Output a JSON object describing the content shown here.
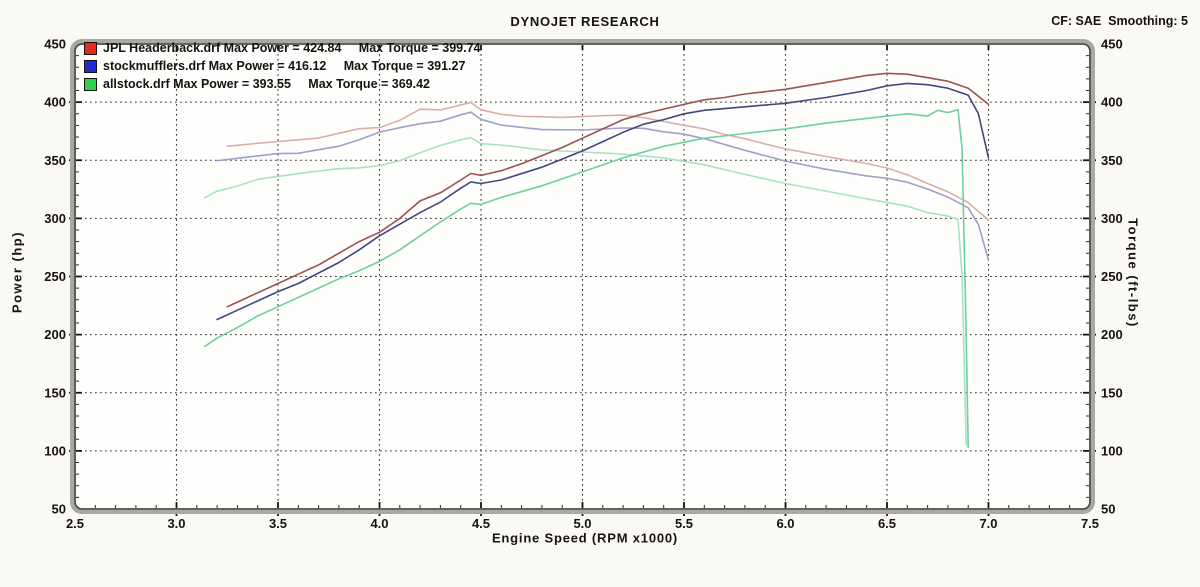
{
  "header": {
    "title": "DYNOJET RESEARCH",
    "cf_label": "CF: SAE  Smoothing: 5"
  },
  "legend": [
    {
      "file": "JPL Headerback.drf",
      "max_power": 424.84,
      "max_torque": 399.74,
      "swatch_color": "#e22a1e",
      "label": "JPL Headerback.drf Max Power = 424.84     Max Torque = 399.74"
    },
    {
      "file": "stockmufflers.drf",
      "max_power": 416.12,
      "max_torque": 391.27,
      "swatch_color": "#1f2ad2",
      "label": "stockmufflers.drf Max Power = 416.12     Max Torque = 391.27"
    },
    {
      "file": "allstock.drf",
      "max_power": 393.55,
      "max_torque": 369.42,
      "swatch_color": "#2ed24a",
      "label": "allstock.drf Max Power = 393.55     Max Torque = 369.42"
    }
  ],
  "chart_data": {
    "type": "line",
    "title": "DYNOJET RESEARCH",
    "xlabel": "Engine Speed (RPM x1000)",
    "ylabel_left": "Power (hp)",
    "ylabel_right": "Torque (ft-lbs)",
    "xlim": [
      2.5,
      7.5
    ],
    "ylim": [
      50,
      450
    ],
    "x_ticks": [
      "2.5",
      "3.0",
      "3.5",
      "4.0",
      "4.5",
      "5.0",
      "5.5",
      "6.0",
      "6.5",
      "7.0",
      "7.5"
    ],
    "y_ticks": [
      "50",
      "100",
      "150",
      "200",
      "250",
      "300",
      "350",
      "400",
      "450"
    ],
    "x_minor": 0.1,
    "y_minor": 10,
    "grid": "dashed-major",
    "grid_color": "#3a3a38",
    "frame_band_color": "#a9a9a0",
    "frame_line_color": "#4a4a44",
    "plot_bg": "#fefefd",
    "series": [
      {
        "name": "allstock torque",
        "unit": "ft-lbs",
        "axis": "torque",
        "color": "#a6e2c5",
        "width": 1.6,
        "points": [
          [
            3.14,
            317.8
          ],
          [
            3.2,
            323.4
          ],
          [
            3.3,
            327.8
          ],
          [
            3.4,
            333.6
          ],
          [
            3.5,
            336.1
          ],
          [
            3.6,
            338.5
          ],
          [
            3.7,
            340.7
          ],
          [
            3.8,
            342.7
          ],
          [
            3.9,
            343.4
          ],
          [
            4.0,
            345.3
          ],
          [
            4.1,
            349.7
          ],
          [
            4.2,
            356.4
          ],
          [
            4.3,
            362.8
          ],
          [
            4.4,
            367.6
          ],
          [
            4.45,
            369.4
          ],
          [
            4.5,
            364.2
          ],
          [
            4.6,
            363.1
          ],
          [
            4.8,
            358.9
          ],
          [
            5.0,
            357.1
          ],
          [
            5.2,
            355.3
          ],
          [
            5.4,
            352.0
          ],
          [
            5.6,
            346.1
          ],
          [
            5.8,
            337.8
          ],
          [
            6.0,
            330.0
          ],
          [
            6.2,
            323.5
          ],
          [
            6.4,
            316.8
          ],
          [
            6.6,
            310.5
          ],
          [
            6.7,
            305.0
          ],
          [
            6.8,
            302.0
          ],
          [
            6.85,
            299.0
          ],
          [
            6.87,
            250.0
          ],
          [
            6.89,
            105.0
          ]
        ]
      },
      {
        "name": "stockmufflers torque",
        "unit": "ft-lbs",
        "axis": "torque",
        "color": "#9f9fce",
        "width": 1.6,
        "points": [
          [
            3.2,
            349.6
          ],
          [
            3.3,
            351.7
          ],
          [
            3.4,
            353.7
          ],
          [
            3.5,
            355.7
          ],
          [
            3.6,
            356.0
          ],
          [
            3.7,
            359.1
          ],
          [
            3.8,
            362.1
          ],
          [
            3.9,
            367.7
          ],
          [
            4.0,
            374.2
          ],
          [
            4.1,
            378.0
          ],
          [
            4.2,
            381.4
          ],
          [
            4.3,
            383.6
          ],
          [
            4.4,
            389.1
          ],
          [
            4.45,
            391.3
          ],
          [
            4.5,
            385.2
          ],
          [
            4.6,
            380.2
          ],
          [
            4.8,
            376.4
          ],
          [
            5.0,
            376.0
          ],
          [
            5.1,
            376.9
          ],
          [
            5.2,
            377.7
          ],
          [
            5.3,
            377.5
          ],
          [
            5.4,
            374.5
          ],
          [
            5.5,
            372.4
          ],
          [
            5.6,
            368.6
          ],
          [
            5.8,
            358.6
          ],
          [
            6.0,
            349.3
          ],
          [
            6.2,
            342.2
          ],
          [
            6.4,
            336.5
          ],
          [
            6.5,
            334.5
          ],
          [
            6.6,
            331.1
          ],
          [
            6.7,
            325.3
          ],
          [
            6.8,
            318.3
          ],
          [
            6.9,
            309.1
          ],
          [
            6.95,
            294.8
          ],
          [
            7.0,
            264.1
          ]
        ]
      },
      {
        "name": "JPL Headerback torque",
        "unit": "ft-lbs",
        "axis": "torque",
        "color": "#d9aeaa",
        "width": 1.6,
        "points": [
          [
            3.25,
            362.1
          ],
          [
            3.3,
            362.9
          ],
          [
            3.4,
            364.6
          ],
          [
            3.5,
            366.1
          ],
          [
            3.6,
            367.6
          ],
          [
            3.7,
            369.1
          ],
          [
            3.8,
            373.2
          ],
          [
            3.9,
            377.1
          ],
          [
            4.0,
            378.1
          ],
          [
            4.1,
            384.4
          ],
          [
            4.2,
            393.9
          ],
          [
            4.3,
            393.3
          ],
          [
            4.4,
            397.5
          ],
          [
            4.45,
            399.7
          ],
          [
            4.5,
            393.4
          ],
          [
            4.6,
            389.4
          ],
          [
            4.7,
            387.8
          ],
          [
            4.8,
            387.4
          ],
          [
            4.9,
            386.9
          ],
          [
            5.0,
            387.6
          ],
          [
            5.1,
            388.3
          ],
          [
            5.2,
            388.8
          ],
          [
            5.3,
            386.6
          ],
          [
            5.4,
            383.3
          ],
          [
            5.5,
            380.1
          ],
          [
            5.6,
            377.0
          ],
          [
            5.7,
            372.2
          ],
          [
            5.8,
            368.5
          ],
          [
            5.9,
            364.0
          ],
          [
            6.0,
            359.8
          ],
          [
            6.1,
            356.5
          ],
          [
            6.2,
            353.2
          ],
          [
            6.3,
            350.1
          ],
          [
            6.4,
            347.2
          ],
          [
            6.5,
            343.3
          ],
          [
            6.6,
            337.6
          ],
          [
            6.7,
            330.0
          ],
          [
            6.8,
            322.9
          ],
          [
            6.9,
            313.6
          ],
          [
            6.95,
            306.0
          ],
          [
            7.0,
            298.6
          ]
        ]
      },
      {
        "name": "allstock power",
        "unit": "hp",
        "axis": "power",
        "color": "#6fcfa0",
        "width": 1.6,
        "points": [
          [
            3.14,
            190
          ],
          [
            3.2,
            197
          ],
          [
            3.3,
            206
          ],
          [
            3.4,
            216
          ],
          [
            3.5,
            224
          ],
          [
            3.6,
            232
          ],
          [
            3.7,
            240
          ],
          [
            3.8,
            248
          ],
          [
            3.9,
            255
          ],
          [
            4.0,
            263
          ],
          [
            4.1,
            273
          ],
          [
            4.2,
            285
          ],
          [
            4.3,
            297
          ],
          [
            4.4,
            308
          ],
          [
            4.45,
            313
          ],
          [
            4.5,
            312
          ],
          [
            4.6,
            318
          ],
          [
            4.8,
            328
          ],
          [
            5.0,
            340
          ],
          [
            5.2,
            352
          ],
          [
            5.4,
            362
          ],
          [
            5.6,
            369
          ],
          [
            5.8,
            373
          ],
          [
            6.0,
            377
          ],
          [
            6.2,
            382
          ],
          [
            6.4,
            386
          ],
          [
            6.6,
            390
          ],
          [
            6.7,
            388
          ],
          [
            6.75,
            393
          ],
          [
            6.8,
            391
          ],
          [
            6.85,
            393.6
          ],
          [
            6.87,
            360
          ],
          [
            6.89,
            200
          ],
          [
            6.9,
            103
          ]
        ]
      },
      {
        "name": "stockmufflers power",
        "unit": "hp",
        "axis": "power",
        "color": "#45457f",
        "width": 1.6,
        "points": [
          [
            3.2,
            213
          ],
          [
            3.3,
            221
          ],
          [
            3.4,
            229
          ],
          [
            3.5,
            237
          ],
          [
            3.6,
            244
          ],
          [
            3.7,
            253
          ],
          [
            3.8,
            262
          ],
          [
            3.9,
            273
          ],
          [
            4.0,
            285
          ],
          [
            4.1,
            295
          ],
          [
            4.2,
            305
          ],
          [
            4.3,
            314
          ],
          [
            4.4,
            326
          ],
          [
            4.45,
            331.4
          ],
          [
            4.5,
            330
          ],
          [
            4.6,
            333
          ],
          [
            4.8,
            344
          ],
          [
            5.0,
            358
          ],
          [
            5.1,
            366
          ],
          [
            5.2,
            374
          ],
          [
            5.3,
            381
          ],
          [
            5.4,
            385
          ],
          [
            5.5,
            390
          ],
          [
            5.6,
            393
          ],
          [
            5.8,
            396
          ],
          [
            6.0,
            399
          ],
          [
            6.2,
            404
          ],
          [
            6.4,
            410
          ],
          [
            6.5,
            414
          ],
          [
            6.6,
            416.1
          ],
          [
            6.7,
            415
          ],
          [
            6.8,
            412
          ],
          [
            6.9,
            406
          ],
          [
            6.95,
            390
          ],
          [
            7.0,
            352
          ]
        ]
      },
      {
        "name": "JPL Headerback power",
        "unit": "hp",
        "axis": "power",
        "color": "#9a5252",
        "width": 1.6,
        "points": [
          [
            3.25,
            224
          ],
          [
            3.3,
            228
          ],
          [
            3.4,
            236
          ],
          [
            3.5,
            244
          ],
          [
            3.6,
            252
          ],
          [
            3.7,
            260
          ],
          [
            3.8,
            270
          ],
          [
            3.9,
            280
          ],
          [
            4.0,
            288
          ],
          [
            4.1,
            300
          ],
          [
            4.2,
            315
          ],
          [
            4.3,
            322
          ],
          [
            4.4,
            333
          ],
          [
            4.45,
            338.6
          ],
          [
            4.5,
            337
          ],
          [
            4.6,
            341
          ],
          [
            4.7,
            347
          ],
          [
            4.8,
            354
          ],
          [
            4.9,
            361
          ],
          [
            5.0,
            369
          ],
          [
            5.1,
            377
          ],
          [
            5.2,
            385
          ],
          [
            5.3,
            390
          ],
          [
            5.4,
            394
          ],
          [
            5.5,
            398
          ],
          [
            5.6,
            402
          ],
          [
            5.7,
            404
          ],
          [
            5.8,
            407
          ],
          [
            5.9,
            409
          ],
          [
            6.0,
            411
          ],
          [
            6.1,
            414
          ],
          [
            6.2,
            417
          ],
          [
            6.3,
            420
          ],
          [
            6.4,
            423
          ],
          [
            6.5,
            424.8
          ],
          [
            6.6,
            424
          ],
          [
            6.7,
            421
          ],
          [
            6.8,
            418
          ],
          [
            6.9,
            412
          ],
          [
            6.95,
            405
          ],
          [
            7.0,
            398
          ]
        ]
      }
    ]
  }
}
